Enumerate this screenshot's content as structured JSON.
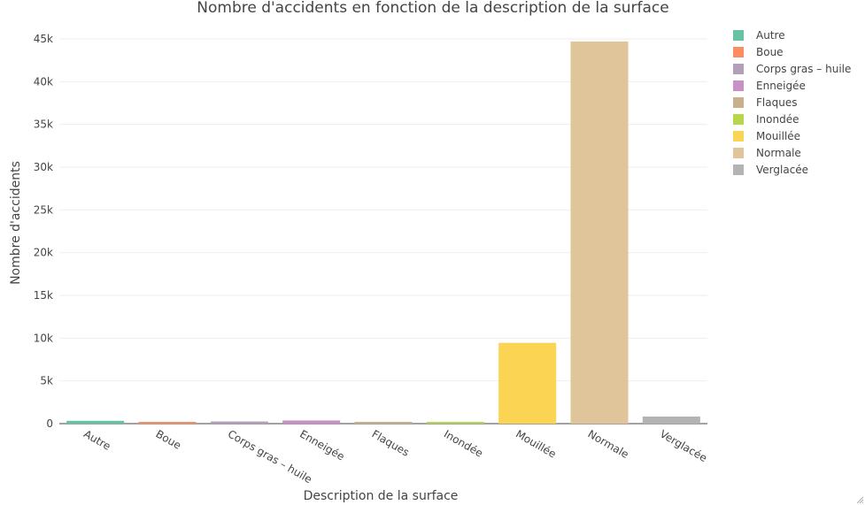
{
  "chart_data": {
    "type": "bar",
    "title": "Nombre d'accidents en fonction de la description de la surface",
    "xlabel": "Description de la surface",
    "ylabel": "Nombre d'accidents",
    "categories": [
      "Autre",
      "Boue",
      "Corps gras – huile",
      "Enneigée",
      "Flaques",
      "Inondée",
      "Mouillée",
      "Normale",
      "Verglacée"
    ],
    "values": [
      330,
      90,
      250,
      370,
      100,
      90,
      9450,
      44700,
      830
    ],
    "colors": [
      "#66c2a5",
      "#fc8d62",
      "#b3a0b8",
      "#c890c6",
      "#c8b08c",
      "#b8d64a",
      "#fad452",
      "#e0c49a",
      "#b3b3b3"
    ],
    "ylim": [
      0,
      46000
    ],
    "yticks": [
      0,
      5000,
      10000,
      15000,
      20000,
      25000,
      30000,
      35000,
      40000,
      45000
    ],
    "ytick_labels": [
      "0",
      "5k",
      "10k",
      "15k",
      "20k",
      "25k",
      "30k",
      "35k",
      "40k",
      "45k"
    ],
    "grid": true,
    "legend_position": "top-right"
  }
}
